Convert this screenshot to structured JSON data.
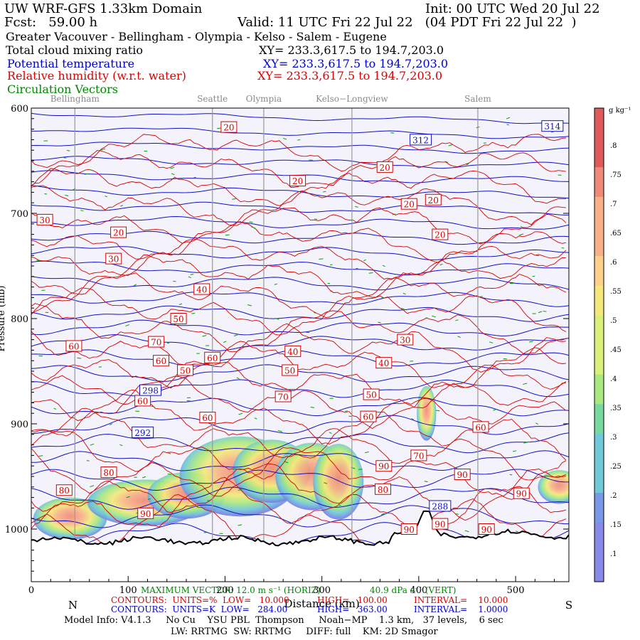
{
  "header": {
    "model_title": "UW WRF-GFS 1.33km Domain",
    "init": "Init: 00 UTC Wed 20 Jul 22",
    "fcst": "Fcst:   59.00 h",
    "valid": "Valid: 11 UTC Fri 22 Jul 22   (04 PDT Fri 22 Jul 22  )",
    "region": "Greater Vacouver - Bellingham - Olympia - Kelso - Salem - Eugene",
    "field1": "Total cloud mixing ratio",
    "field1_xy": "XY= 233.3,617.5 to 194.7,203.0",
    "field2": "Potential temperature",
    "field2_xy": "XY= 233.3,617.5 to 194.7,203.0",
    "field3": "Relative humidity (w.r.t. water)",
    "field3_xy": "XY= 233.3,617.5 to 194.7,203.0",
    "field4": "Circulation Vectors"
  },
  "chart_data": {
    "type": "heatmap",
    "title": "",
    "xlabel": "Distance (km)",
    "ylabel": "Pressure (mb)",
    "xlim": [
      0,
      555
    ],
    "ylim": [
      1050,
      600
    ],
    "x_ticks": [
      0,
      100,
      200,
      300,
      400,
      500
    ],
    "x_tick_labels": [
      "0",
      "100",
      "200",
      "300",
      "400",
      "500"
    ],
    "y_ticks": [
      600,
      700,
      800,
      900,
      1000
    ],
    "y_tick_labels": [
      "600",
      "700",
      "800",
      "900",
      "1000"
    ],
    "direction_labels": {
      "left": "N",
      "right": "S"
    },
    "city_markers": [
      {
        "name": "Bellingham",
        "x": 45
      },
      {
        "name": "Seattle",
        "x": 187
      },
      {
        "name": "Olympia",
        "x": 240
      },
      {
        "name": "Kelso−Longview",
        "x": 331
      },
      {
        "name": "Salem",
        "x": 461
      }
    ],
    "colorbar": {
      "unit": "g kg⁻¹",
      "levels": [
        ".8",
        ".75",
        ".7",
        ".65",
        ".6",
        ".55",
        ".5",
        ".45",
        ".4",
        ".35",
        ".3",
        ".25",
        ".2",
        ".15",
        ".1"
      ],
      "colors": [
        "#e05a5a",
        "#f08a78",
        "#f8b088",
        "#fcd08a",
        "#f4e87a",
        "#d8f07a",
        "#a8e880",
        "#78d8a0",
        "#70c8d8",
        "#7898e8",
        "#8888e8"
      ]
    },
    "theta_labels_K": [
      {
        "value": "314",
        "x": 538,
        "p": 617
      },
      {
        "value": "312",
        "x": 402,
        "p": 630
      },
      {
        "value": "298",
        "x": 123,
        "p": 868
      },
      {
        "value": "292",
        "x": 115,
        "p": 908
      },
      {
        "value": "288",
        "x": 422,
        "p": 978
      }
    ],
    "rh_labels_pct": [
      {
        "value": "20",
        "x": 204,
        "p": 618
      },
      {
        "value": "20",
        "x": 365,
        "p": 656
      },
      {
        "value": "20",
        "x": 275,
        "p": 669
      },
      {
        "value": "20",
        "x": 390,
        "p": 691
      },
      {
        "value": "20",
        "x": 415,
        "p": 687
      },
      {
        "value": "20",
        "x": 422,
        "p": 720
      },
      {
        "value": "20",
        "x": 90,
        "p": 718
      },
      {
        "value": "30",
        "x": 14,
        "p": 706
      },
      {
        "value": "30",
        "x": 85,
        "p": 743
      },
      {
        "value": "40",
        "x": 176,
        "p": 772
      },
      {
        "value": "50",
        "x": 152,
        "p": 800
      },
      {
        "value": "60",
        "x": 44,
        "p": 826
      },
      {
        "value": "70",
        "x": 129,
        "p": 822
      },
      {
        "value": "60",
        "x": 134,
        "p": 840
      },
      {
        "value": "60",
        "x": 187,
        "p": 837
      },
      {
        "value": "50",
        "x": 159,
        "p": 849
      },
      {
        "value": "40",
        "x": 270,
        "p": 831
      },
      {
        "value": "50",
        "x": 267,
        "p": 849
      },
      {
        "value": "30",
        "x": 386,
        "p": 820
      },
      {
        "value": "40",
        "x": 364,
        "p": 842
      },
      {
        "value": "70",
        "x": 260,
        "p": 874
      },
      {
        "value": "60",
        "x": 115,
        "p": 878
      },
      {
        "value": "60",
        "x": 182,
        "p": 894
      },
      {
        "value": "50",
        "x": 351,
        "p": 872
      },
      {
        "value": "60",
        "x": 348,
        "p": 893
      },
      {
        "value": "60",
        "x": 464,
        "p": 903
      },
      {
        "value": "70",
        "x": 400,
        "p": 930
      },
      {
        "value": "90",
        "x": 364,
        "p": 940
      },
      {
        "value": "90",
        "x": 445,
        "p": 948
      },
      {
        "value": "80",
        "x": 80,
        "p": 946
      },
      {
        "value": "80",
        "x": 34,
        "p": 963
      },
      {
        "value": "90",
        "x": 118,
        "p": 985
      },
      {
        "value": "80",
        "x": 363,
        "p": 962
      },
      {
        "value": "90",
        "x": 506,
        "p": 966
      },
      {
        "value": "90",
        "x": 390,
        "p": 1000
      },
      {
        "value": "90",
        "x": 470,
        "p": 1000
      },
      {
        "value": "90",
        "x": 422,
        "p": 995
      }
    ]
  },
  "footer": {
    "vectors": "MAXIMUM VECTOR: 12.0 m s⁻¹ (HORIZ)",
    "vectors_vert": "40.9 dPa s⁻¹ (VERT)",
    "contours_rh": "CONTOURS:  UNITS=%  LOW=   10.000",
    "contours_rh_high": "HIGH=   100.00",
    "contours_rh_interval": "INTERVAL=    10.000",
    "contours_theta": "CONTOURS:  UNITS=K  LOW=   284.00",
    "contours_theta_high": "HIGH=   363.00",
    "contours_theta_interval": "INTERVAL=    1.0000",
    "model_info": "Model Info: V4.1.3     No Cu    YSU PBL  Thompson     Noah−MP    1.3 km,   37 levels,    6 sec",
    "model_info2": "LW: RRTMG  SW: RRTMG     DIFF: full    KM: 2D Smagor"
  }
}
